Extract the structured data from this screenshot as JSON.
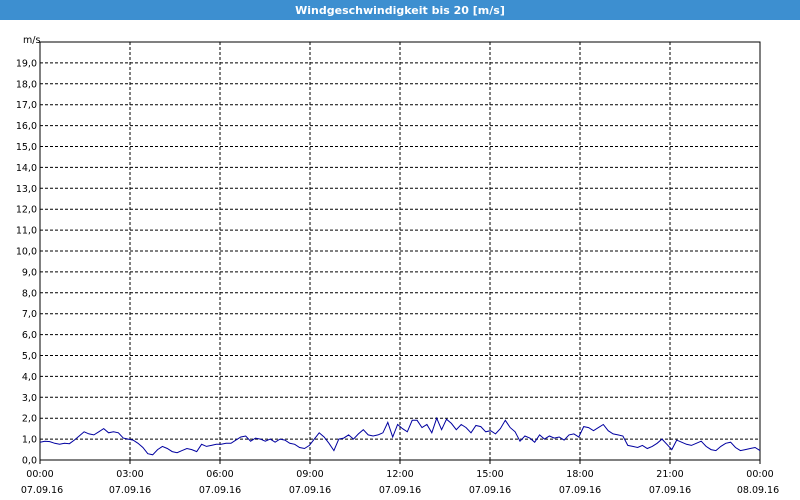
{
  "window": {
    "title": "Windgeschwindigkeit bis 20 [m/s]"
  },
  "colors": {
    "titlebar": "#3d8fd0",
    "series": "#0000a0",
    "grid": "#000000"
  },
  "chart_data": {
    "type": "line",
    "title": "Windgeschwindigkeit bis 20 [m/s]",
    "ylabel": "m/s",
    "ylim": [
      0,
      20
    ],
    "yticks": [
      "0,0",
      "1,0",
      "2,0",
      "3,0",
      "4,0",
      "5,0",
      "6,0",
      "7,0",
      "8,0",
      "9,0",
      "10,0",
      "11,0",
      "12,0",
      "13,0",
      "14,0",
      "15,0",
      "16,0",
      "17,0",
      "18,0",
      "19,0"
    ],
    "xlim": [
      "07.09.16 00:00",
      "08.09.16 00:00"
    ],
    "xticks": [
      {
        "time": "00:00",
        "date": "07.09.16"
      },
      {
        "time": "03:00",
        "date": "07.09.16"
      },
      {
        "time": "06:00",
        "date": "07.09.16"
      },
      {
        "time": "09:00",
        "date": "07.09.16"
      },
      {
        "time": "12:00",
        "date": "07.09.16"
      },
      {
        "time": "15:00",
        "date": "07.09.16"
      },
      {
        "time": "18:00",
        "date": "07.09.16"
      },
      {
        "time": "21:00",
        "date": "07.09.16"
      },
      {
        "time": "00:00",
        "date": "08.09.16"
      }
    ],
    "grid": true,
    "series": [
      {
        "values": [
          0.85,
          0.9,
          0.88,
          0.8,
          0.75,
          0.8,
          0.78,
          0.95,
          1.15,
          1.35,
          1.25,
          1.2,
          1.35,
          1.5,
          1.3,
          1.35,
          1.3,
          1.05,
          1.0,
          0.95,
          0.8,
          0.6,
          0.3,
          0.25,
          0.5,
          0.65,
          0.55,
          0.4,
          0.35,
          0.45,
          0.55,
          0.5,
          0.4,
          0.75,
          0.65,
          0.7,
          0.75,
          0.75,
          0.8,
          0.8,
          0.95,
          1.1,
          1.15,
          0.9,
          1.05,
          1.0,
          0.9,
          1.0,
          0.85,
          1.0,
          0.95,
          0.8,
          0.75,
          0.6,
          0.55,
          0.7,
          1.0,
          1.3,
          1.1,
          0.8,
          0.45,
          1.0,
          1.05,
          1.2,
          1.0,
          1.25,
          1.45,
          1.2,
          1.15,
          1.2,
          1.3,
          1.8,
          1.1,
          1.7,
          1.5,
          1.35,
          1.9,
          1.9,
          1.55,
          1.7,
          1.3,
          2.0,
          1.45,
          1.95,
          1.75,
          1.45,
          1.7,
          1.55,
          1.3,
          1.65,
          1.6,
          1.35,
          1.4,
          1.25,
          1.5,
          1.9,
          1.55,
          1.35,
          0.9,
          1.15,
          1.05,
          0.85,
          1.2,
          1.0,
          1.15,
          1.05,
          1.1,
          0.95,
          1.2,
          1.25,
          1.1,
          1.6,
          1.55,
          1.4,
          1.55,
          1.7,
          1.4,
          1.25,
          1.2,
          1.15,
          0.7,
          0.65,
          0.6,
          0.7,
          0.55,
          0.65,
          0.8,
          1.0,
          0.75,
          0.5,
          0.95,
          0.85,
          0.75,
          0.7,
          0.8,
          0.9,
          0.65,
          0.5,
          0.45,
          0.65,
          0.8,
          0.85,
          0.6,
          0.45,
          0.5,
          0.55,
          0.6,
          0.45
        ]
      }
    ]
  }
}
